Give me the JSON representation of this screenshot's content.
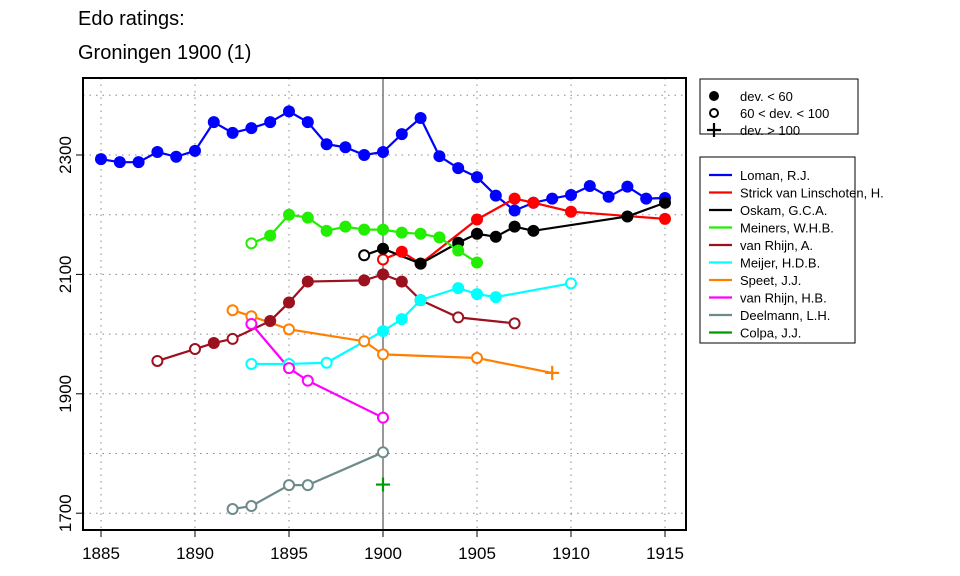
{
  "chart_data": {
    "type": "line",
    "title": [
      "Edo ratings:",
      "Groningen 1900 (1)"
    ],
    "xlabel": "",
    "ylabel": "",
    "xlim": [
      1884,
      1916
    ],
    "ylim": [
      1680,
      2440
    ],
    "xticks": [
      1885,
      1890,
      1895,
      1900,
      1905,
      1910,
      1915
    ],
    "yticks": [
      1700,
      1900,
      2100,
      2300
    ],
    "grid": true,
    "reference_year": 1900,
    "marker_legend": [
      {
        "marker": "filled",
        "label": "dev. < 60"
      },
      {
        "marker": "open",
        "label": "60 < dev. < 100"
      },
      {
        "marker": "plus",
        "label": "dev. > 100"
      }
    ],
    "series": [
      {
        "name": "Loman, R.J.",
        "color": "#0000ff",
        "points": [
          [
            1885,
            2293,
            "f"
          ],
          [
            1886,
            2288,
            "f"
          ],
          [
            1887,
            2288,
            "f"
          ],
          [
            1888,
            2305,
            "f"
          ],
          [
            1889,
            2297,
            "f"
          ],
          [
            1890,
            2307,
            "f"
          ],
          [
            1891,
            2355,
            "f"
          ],
          [
            1892,
            2337,
            "f"
          ],
          [
            1893,
            2345,
            "f"
          ],
          [
            1894,
            2355,
            "f"
          ],
          [
            1895,
            2373,
            "f"
          ],
          [
            1896,
            2355,
            "f"
          ],
          [
            1897,
            2318,
            "f"
          ],
          [
            1898,
            2313,
            "f"
          ],
          [
            1899,
            2300,
            "f"
          ],
          [
            1900,
            2305,
            "f"
          ],
          [
            1901,
            2335,
            "f"
          ],
          [
            1902,
            2362,
            "f"
          ],
          [
            1903,
            2298,
            "f"
          ],
          [
            1904,
            2278,
            "f"
          ],
          [
            1905,
            2263,
            "f"
          ],
          [
            1906,
            2232,
            "f"
          ],
          [
            1907,
            2207,
            "f"
          ],
          [
            1908,
            2220,
            "f"
          ],
          [
            1909,
            2227,
            "f"
          ],
          [
            1910,
            2233,
            "f"
          ],
          [
            1911,
            2248,
            "f"
          ],
          [
            1912,
            2230,
            "f"
          ],
          [
            1913,
            2247,
            "f"
          ],
          [
            1914,
            2227,
            "f"
          ],
          [
            1915,
            2228,
            "f"
          ]
        ]
      },
      {
        "name": "Strick van Linschoten, H.",
        "color": "#ff0000",
        "points": [
          [
            1900,
            2125,
            "o"
          ],
          [
            1901,
            2138,
            "f"
          ],
          [
            1902,
            2118,
            "f"
          ],
          [
            1905,
            2192,
            "f"
          ],
          [
            1907,
            2227,
            "f"
          ],
          [
            1908,
            2220,
            "f"
          ],
          [
            1910,
            2205,
            "f"
          ],
          [
            1915,
            2193,
            "f"
          ]
        ]
      },
      {
        "name": "Oskam, G.C.A.",
        "color": "#000000",
        "points": [
          [
            1899,
            2132,
            "o"
          ],
          [
            1900,
            2143,
            "f"
          ],
          [
            1902,
            2118,
            "f"
          ],
          [
            1904,
            2153,
            "f"
          ],
          [
            1905,
            2168,
            "f"
          ],
          [
            1906,
            2163,
            "f"
          ],
          [
            1907,
            2180,
            "f"
          ],
          [
            1908,
            2173,
            "f"
          ],
          [
            1913,
            2197,
            "f"
          ],
          [
            1915,
            2220,
            "f"
          ]
        ]
      },
      {
        "name": "Meiners, W.H.B.",
        "color": "#22ee00",
        "points": [
          [
            1893,
            2152,
            "o"
          ],
          [
            1894,
            2165,
            "f"
          ],
          [
            1895,
            2200,
            "f"
          ],
          [
            1896,
            2195,
            "f"
          ],
          [
            1897,
            2173,
            "f"
          ],
          [
            1898,
            2180,
            "f"
          ],
          [
            1899,
            2175,
            "f"
          ],
          [
            1900,
            2175,
            "f"
          ],
          [
            1901,
            2170,
            "f"
          ],
          [
            1902,
            2168,
            "f"
          ],
          [
            1903,
            2162,
            "f"
          ],
          [
            1904,
            2140,
            "f"
          ],
          [
            1905,
            2120,
            "f"
          ]
        ]
      },
      {
        "name": "van Rhijn, A.",
        "color": "#9b111e",
        "points": [
          [
            1888,
            1955,
            "o"
          ],
          [
            1890,
            1975,
            "o"
          ],
          [
            1891,
            1985,
            "f"
          ],
          [
            1892,
            1992,
            "o"
          ],
          [
            1894,
            2022,
            "f"
          ],
          [
            1895,
            2053,
            "f"
          ],
          [
            1896,
            2088,
            "f"
          ],
          [
            1899,
            2090,
            "f"
          ],
          [
            1900,
            2100,
            "f"
          ],
          [
            1901,
            2088,
            "f"
          ],
          [
            1902,
            2057,
            "f"
          ],
          [
            1904,
            2028,
            "o"
          ],
          [
            1907,
            2018,
            "o"
          ]
        ]
      },
      {
        "name": "Meijer, H.D.B.",
        "color": "#00ffff",
        "points": [
          [
            1893,
            1950,
            "o"
          ],
          [
            1895,
            1950,
            "o"
          ],
          [
            1897,
            1952,
            "o"
          ],
          [
            1900,
            2005,
            "f"
          ],
          [
            1901,
            2025,
            "f"
          ],
          [
            1902,
            2057,
            "f"
          ],
          [
            1904,
            2077,
            "f"
          ],
          [
            1905,
            2067,
            "f"
          ],
          [
            1906,
            2062,
            "f"
          ],
          [
            1910,
            2085,
            "o"
          ]
        ]
      },
      {
        "name": "Speet, J.J.",
        "color": "#ff7f00",
        "points": [
          [
            1892,
            2040,
            "o"
          ],
          [
            1893,
            2030,
            "o"
          ],
          [
            1895,
            2008,
            "o"
          ],
          [
            1899,
            1988,
            "o"
          ],
          [
            1900,
            1966,
            "o"
          ],
          [
            1905,
            1960,
            "o"
          ],
          [
            1909,
            1935,
            "p"
          ]
        ]
      },
      {
        "name": "van Rhijn, H.B.",
        "color": "#ff00ff",
        "points": [
          [
            1893,
            2017,
            "o"
          ],
          [
            1895,
            1943,
            "o"
          ],
          [
            1896,
            1922,
            "o"
          ],
          [
            1900,
            1860,
            "o"
          ]
        ]
      },
      {
        "name": "Deelmann, L.H.",
        "color": "#6e8b8b",
        "points": [
          [
            1892,
            1707,
            "o"
          ],
          [
            1893,
            1712,
            "o"
          ],
          [
            1895,
            1747,
            "o"
          ],
          [
            1896,
            1747,
            "o"
          ],
          [
            1900,
            1802,
            "o"
          ]
        ]
      },
      {
        "name": "Colpa, J.J.",
        "color": "#009900",
        "points": [
          [
            1900,
            1748,
            "p"
          ]
        ]
      }
    ]
  }
}
